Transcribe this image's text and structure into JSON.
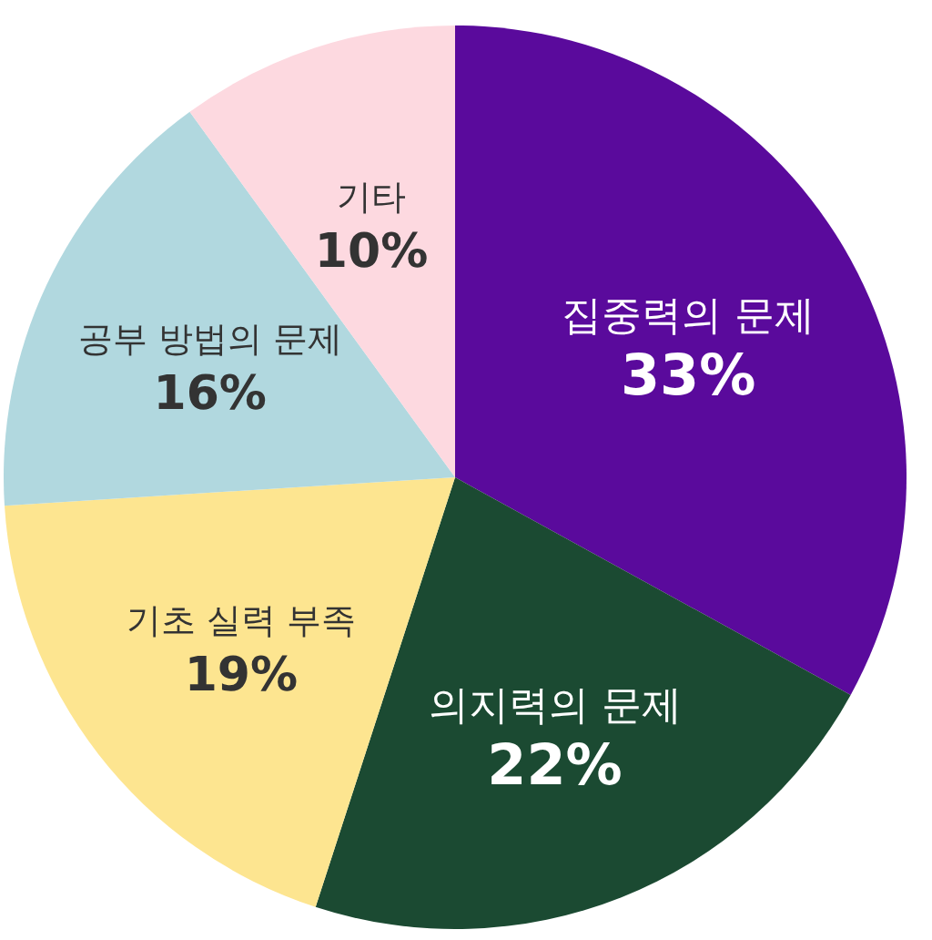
{
  "chart_data": {
    "type": "pie",
    "categories": [
      "집중력의 문제",
      "의지력의 문제",
      "기초 실력 부족",
      "공부 방법의 문제",
      "기타"
    ],
    "values": [
      33,
      22,
      19,
      16,
      10
    ],
    "value_labels": [
      "33%",
      "22%",
      "19%",
      "16%",
      "10%"
    ],
    "colors": [
      "#5a0a9c",
      "#1b4a32",
      "#fde590",
      "#b1d8df",
      "#fdd9e0"
    ]
  }
}
